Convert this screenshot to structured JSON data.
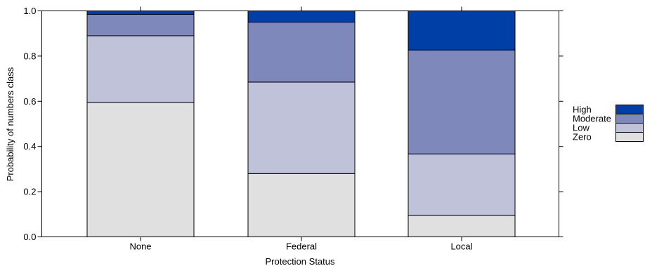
{
  "chart_data": {
    "type": "bar",
    "stacked": true,
    "xlabel": "Protection Status",
    "ylabel": "Probability of numbers class",
    "categories": [
      "None",
      "Federal",
      "Local"
    ],
    "ylim": [
      0,
      1
    ],
    "yticks": [
      0.0,
      0.2,
      0.4,
      0.6,
      0.8,
      1.0
    ],
    "ytick_labels": [
      "0.0",
      "0.2",
      "0.4",
      "0.6",
      "0.8",
      "1.0"
    ],
    "series": [
      {
        "name": "Zero",
        "values": [
          0.595,
          0.28,
          0.095
        ],
        "color": "#e0e0e0"
      },
      {
        "name": "Low",
        "values": [
          0.295,
          0.405,
          0.272
        ],
        "color": "#bfc2d8"
      },
      {
        "name": "Moderate",
        "values": [
          0.095,
          0.265,
          0.46
        ],
        "color": "#7f88bb"
      },
      {
        "name": "High",
        "values": [
          0.015,
          0.05,
          0.173
        ],
        "color": "#0040a6"
      }
    ],
    "legend": {
      "placement": "right",
      "order": [
        "High",
        "Moderate",
        "Low",
        "Zero"
      ]
    },
    "grid": false
  }
}
